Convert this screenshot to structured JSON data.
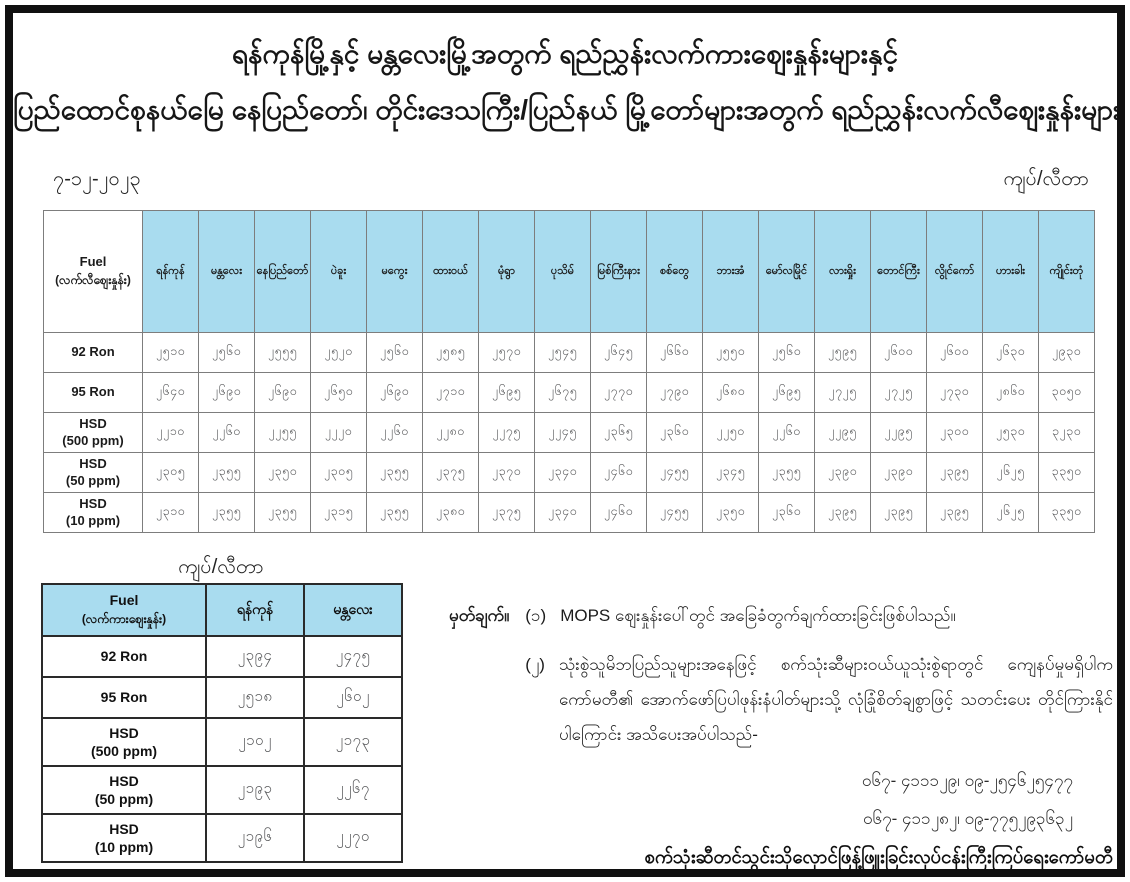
{
  "page": {
    "title_line1": "ရန်ကုန်မြို့နှင့် မန္တလေးမြို့အတွက် ရည်ညွှန်းလက်ကားဈေးနှုန်းများနှင့်",
    "title_line2": "ပြည်ထောင်စုနယ်မြေ နေပြည်တော်၊ တိုင်းဒေသကြီး/ပြည်နယ် မြို့တော်များအတွက် ရည်ညွှန်းလက်လီဈေးနှုန်းများ",
    "date": "၇-၁၂-၂၀၂၃",
    "unit": "ကျပ်/လီတာ"
  },
  "retail_table": {
    "fuel_header": {
      "line1": "Fuel",
      "line2": "(လက်လီဈေးနှုန်း)"
    },
    "cities": [
      "ရန်ကုန်",
      "မန္တလေး",
      "နေပြည်တော်",
      "ပဲခူး",
      "မကွေး",
      "ထားဝယ်",
      "မုံရွာ",
      "ပုသိမ်",
      "မြစ်ကြီးနား",
      "စစ်တွေ",
      "ဘားအံ",
      "မော်လမြိုင်",
      "လားရှိုး",
      "တောင်ကြီး",
      "လွိုင်ကော်",
      "ဟားခါး",
      "ကျိုင်းတုံ"
    ],
    "rows": [
      {
        "fuel": "92 Ron",
        "sub": "",
        "values": [
          "၂၅၁၀",
          "၂၅၆၀",
          "၂၅၅၅",
          "၂၅၂၀",
          "၂၅၆၀",
          "၂၅၈၅",
          "၂၅၇၀",
          "၂၅၄၅",
          "၂၆၄၅",
          "၂၆၆၀",
          "၂၅၅၀",
          "၂၅၆၀",
          "၂၅၉၅",
          "၂၆၀၀",
          "၂၆၀၀",
          "၂၆၃၀",
          "၂၉၃၀"
        ]
      },
      {
        "fuel": "95 Ron",
        "sub": "",
        "values": [
          "၂၆၄၀",
          "၂၆၉၀",
          "၂၆၉၀",
          "၂၆၅၀",
          "၂၆၉၀",
          "၂၇၁၀",
          "၂၆၉၅",
          "၂၆၇၅",
          "၂၇၇၀",
          "၂၇၉၀",
          "၂၆၈၀",
          "၂၆၉၅",
          "၂၇၂၅",
          "၂၇၂၅",
          "၂၇၃၀",
          "၂၈၆၀",
          "၃၀၅၀"
        ]
      },
      {
        "fuel": "HSD",
        "sub": "(500 ppm)",
        "values": [
          "၂၂၁၀",
          "၂၂၆၀",
          "၂၂၅၅",
          "၂၂၂၀",
          "၂၂၆၀",
          "၂၂၈၀",
          "၂၂၇၅",
          "၂၂၄၅",
          "၂၃၆၅",
          "၂၃၆၀",
          "၂၂၅၀",
          "၂၂၆၀",
          "၂၂၉၅",
          "၂၂၉၅",
          "၂၃၀၀",
          "၂၅၃၀",
          "၃၂၃၀"
        ]
      },
      {
        "fuel": "HSD",
        "sub": "(50 ppm)",
        "values": [
          "၂၃၀၅",
          "၂၃၅၅",
          "၂၃၅၀",
          "၂၃၀၅",
          "၂၃၅၅",
          "၂၃၇၅",
          "၂၃၇၀",
          "၂၃၄၀",
          "၂၄၆၀",
          "၂၄၅၅",
          "၂၃၄၅",
          "၂၃၅၅",
          "၂၃၉၀",
          "၂၃၉၀",
          "၂၃၉၅",
          "၂၆၂၅",
          "၃၃၅၀"
        ]
      },
      {
        "fuel": "HSD",
        "sub": "(10 ppm)",
        "values": [
          "၂၃၁၀",
          "၂၃၅၅",
          "၂၃၅၅",
          "၂၃၁၅",
          "၂၃၅၅",
          "၂၃၈၀",
          "၂၃၇၅",
          "၂၃၄၀",
          "၂၄၆၀",
          "၂၄၅၅",
          "၂၃၅၀",
          "၂၃၆၀",
          "၂၃၉၅",
          "၂၃၉၅",
          "၂၃၉၅",
          "၂၆၂၅",
          "၃၃၅၀"
        ]
      }
    ]
  },
  "wholesale_table": {
    "unit": "ကျပ်/လီတာ",
    "fuel_header": {
      "line1": "Fuel",
      "line2": "(လက်ကားဈေးနှုန်း)"
    },
    "cities": [
      "ရန်ကုန်",
      "မန္တလေး"
    ],
    "rows": [
      {
        "fuel": "92 Ron",
        "sub": "",
        "values": [
          "၂၃၉၄",
          "၂၄၇၅"
        ]
      },
      {
        "fuel": "95 Ron",
        "sub": "",
        "values": [
          "၂၅၁၈",
          "၂၆၀၂"
        ]
      },
      {
        "fuel": "HSD",
        "sub": "(500 ppm)",
        "values": [
          "၂၁၀၂",
          "၂၁၇၃"
        ]
      },
      {
        "fuel": "HSD",
        "sub": "(50 ppm)",
        "values": [
          "၂၁၉၃",
          "၂၂၆၇"
        ]
      },
      {
        "fuel": "HSD",
        "sub": "(10 ppm)",
        "values": [
          "၂၁၉၆",
          "၂၂၇၀"
        ]
      }
    ]
  },
  "notes": {
    "label": "မှတ်ချက်။",
    "items": [
      {
        "num": "(၁)",
        "text": "MOPS ဈေးနှုန်းပေါ်တွင် အခြေခံတွက်ချက်ထားခြင်းဖြစ်ပါသည်။"
      },
      {
        "num": "(၂)",
        "text": "သုံးစွဲသူမိဘပြည်သူများအနေဖြင့် စက်သုံးဆီများဝယ်ယူသုံးစွဲရာတွင် ကျေနပ်မှုမရှိပါက ကော်မတီ၏ အောက်ဖော်ပြပါဖုန်းနံပါတ်များသို့ လုံခြုံစိတ်ချစွာဖြင့် သတင်းပေး တိုင်ကြားနိုင်ပါကြောင်း အသိပေးအပ်ပါသည်-"
      }
    ],
    "phones": [
      "၀၆၇- ၄၁၁၁၂၉၊ ၀၉-၂၅၄၆၂၅၄၇၇",
      "၀၆၇- ၄၁၁၂၈၂၊ ၀၉-၇၇၅၂၉၃၆၃၂"
    ],
    "committee": "စက်သုံးဆီတင်သွင်းသိုလှောင်ဖြန့်ဖြူးခြင်းလုပ်ငန်းကြီးကြပ်ရေးကော်မတီ"
  },
  "colors": {
    "header_fill": "#a9dcef",
    "value_text": "#58595b",
    "frame": "#101010"
  }
}
